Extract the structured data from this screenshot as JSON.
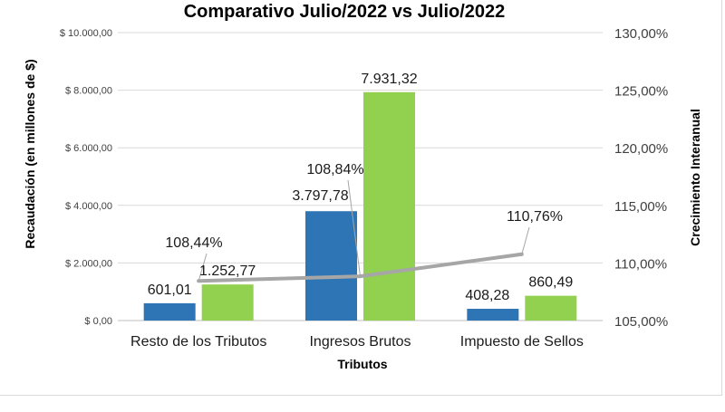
{
  "chart_data": {
    "type": "bar",
    "title": "Comparativo Julio/2022 vs Julio/2022",
    "xlabel": "Tributos",
    "ylabel": "Recaudación (en millones de $)",
    "y2label": "Crecimiento Interanual",
    "categories": [
      "Resto de los Tributos",
      "Ingresos Brutos",
      "Impuesto de Sellos"
    ],
    "series": [
      {
        "type": "bar",
        "axis": "left",
        "color": "#2e75b6",
        "values": [
          601.01,
          3797.78,
          408.28
        ],
        "labels": [
          "601,01",
          "3.797,78",
          "408,28"
        ]
      },
      {
        "type": "bar",
        "axis": "left",
        "color": "#92d050",
        "values": [
          1252.77,
          7931.32,
          860.49
        ],
        "labels": [
          "1.252,77",
          "7.931,32",
          "860,49"
        ]
      },
      {
        "type": "line",
        "axis": "right",
        "color": "#a6a6a6",
        "values": [
          108.44,
          108.84,
          110.76
        ],
        "labels": [
          "108,44%",
          "108,84%",
          "110,76%"
        ]
      }
    ],
    "ylim": [
      0,
      10000
    ],
    "y2lim": [
      105,
      130
    ],
    "yticks": [
      "$ 0,00",
      "$ 2.000,00",
      "$ 4.000,00",
      "$ 6.000,00",
      "$ 8.000,00",
      "$ 10.000,00"
    ],
    "y2ticks": [
      "105,00%",
      "110,00%",
      "115,00%",
      "120,00%",
      "125,00%",
      "130,00%"
    ],
    "grid": true,
    "legend": "none"
  }
}
